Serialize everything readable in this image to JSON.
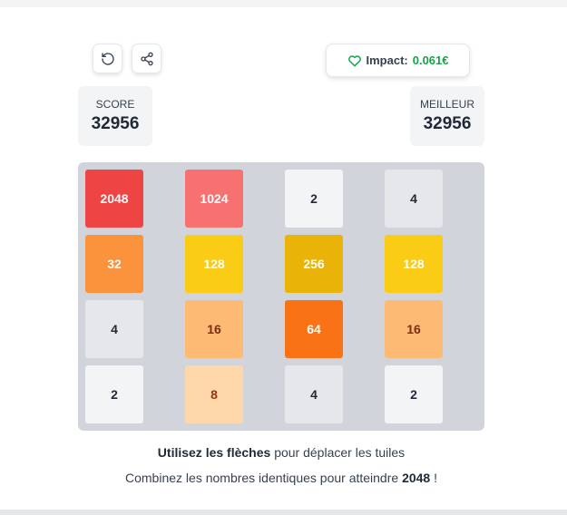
{
  "header": {
    "impact_label": "Impact:",
    "impact_value": "0.061€"
  },
  "score": {
    "label": "SCORE",
    "value": 32956
  },
  "best": {
    "label": "MEILLEUR",
    "value": 32956
  },
  "board": {
    "rows": [
      [
        {
          "value": 2048,
          "color": "#ef4444",
          "text_color": "#ffffff"
        },
        {
          "value": 1024,
          "color": "#f87171",
          "text_color": "#ffffff"
        },
        {
          "value": 2,
          "color": "#f3f4f6",
          "text_color": "#1f2937"
        },
        {
          "value": 4,
          "color": "#e5e7eb",
          "text_color": "#1f2937"
        }
      ],
      [
        {
          "value": 32,
          "color": "#fb923c",
          "text_color": "#ffffff"
        },
        {
          "value": 128,
          "color": "#facc15",
          "text_color": "#ffffff"
        },
        {
          "value": 256,
          "color": "#eab308",
          "text_color": "#ffffff"
        },
        {
          "value": 128,
          "color": "#facc15",
          "text_color": "#ffffff"
        }
      ],
      [
        {
          "value": 4,
          "color": "#e5e7eb",
          "text_color": "#1f2937"
        },
        {
          "value": 16,
          "color": "#fdba74",
          "text_color": "#7c2d12"
        },
        {
          "value": 64,
          "color": "#f97316",
          "text_color": "#ffffff"
        },
        {
          "value": 16,
          "color": "#fdba74",
          "text_color": "#7c2d12"
        }
      ],
      [
        {
          "value": 2,
          "color": "#f3f4f6",
          "text_color": "#1f2937"
        },
        {
          "value": 8,
          "color": "#fed7aa",
          "text_color": "#9a3412"
        },
        {
          "value": 4,
          "color": "#e5e7eb",
          "text_color": "#1f2937"
        },
        {
          "value": 2,
          "color": "#f3f4f6",
          "text_color": "#1f2937"
        }
      ]
    ]
  },
  "instructions": {
    "line1": {
      "bold": "Utilisez les flèches",
      "text": "pour déplacer les tuiles"
    },
    "line2": {
      "text": "Combinez les nombres identiques pour atteindre",
      "bold": "2048",
      "end": "!"
    }
  }
}
